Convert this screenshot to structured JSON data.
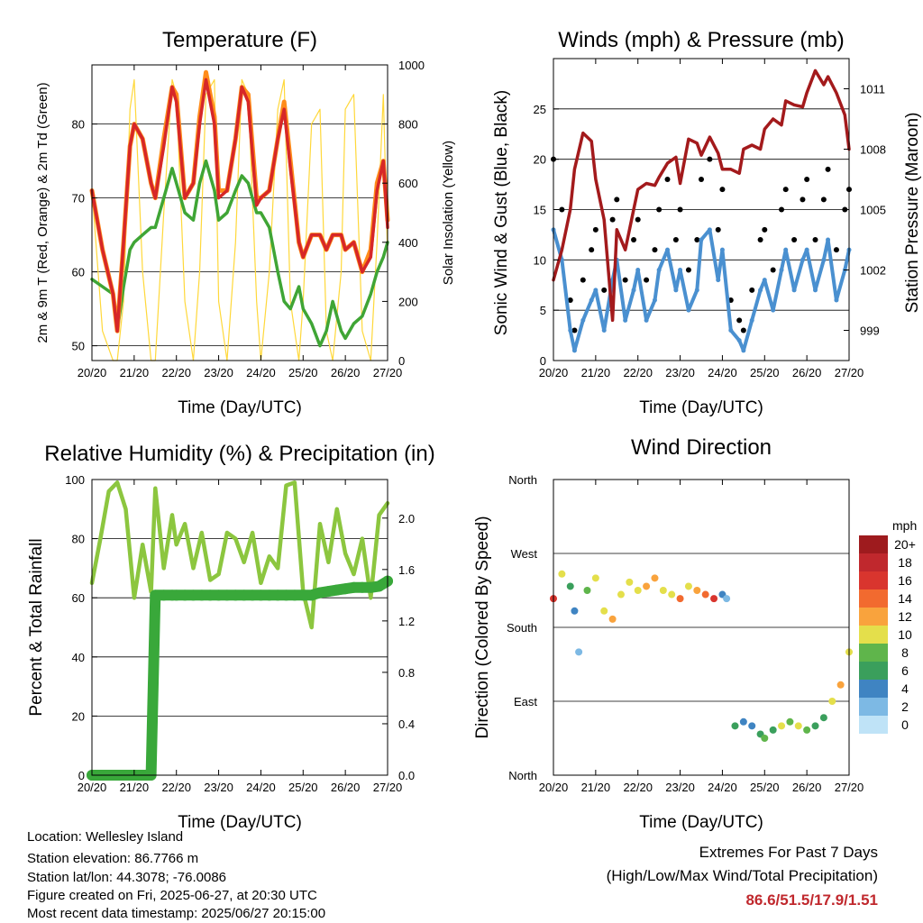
{
  "x_tick_labels": [
    "20/20",
    "21/20",
    "22/20",
    "23/20",
    "24/20",
    "25/20",
    "26/20",
    "27/20"
  ],
  "colors": {
    "temp_2m": "#d62728",
    "temp_9m": "#ff8c1a",
    "dewpoint": "#3fa535",
    "solar": "#ffd83a",
    "wind": "#4a90d0",
    "gust": "#000000",
    "pressure": "#a31a1c",
    "humidity": "#8cc63f",
    "precip": "#39a83a"
  },
  "info": {
    "location": "Location: Wellesley Island",
    "elevation": "Station elevation: 86.7766 m",
    "latlon": "Station lat/lon: 44.3078; -76.0086",
    "created": "Figure created on Fri, 2025-06-27, at 20:30 UTC",
    "recent": "Most recent data timestamp: 2025/06/27 20:15:00"
  },
  "extremes": {
    "title": "Extremes For Past 7 Days",
    "subtitle": "(High/Low/Max Wind/Total Precipitation)",
    "values": "86.6/51.5/17.9/1.51"
  },
  "chart_data": [
    {
      "type": "line",
      "title": "Temperature (F)",
      "xlabel": "Time (Day/UTC)",
      "ylabel": "2m & 9m T (Red, Orange) & 2m Td (Green)",
      "ylabel_right": "Solar Insolation (Yellow)",
      "ylim": [
        48,
        88
      ],
      "ylim_right": [
        0,
        1000
      ],
      "yticks": [
        50,
        60,
        70,
        80
      ],
      "yticks_right": [
        0,
        200,
        400,
        600,
        800,
        1000
      ],
      "x": [
        0,
        0.25,
        0.5,
        0.6,
        0.75,
        0.9,
        1.0,
        1.2,
        1.4,
        1.5,
        1.7,
        1.9,
        2.0,
        2.2,
        2.4,
        2.55,
        2.7,
        2.9,
        3.0,
        3.2,
        3.4,
        3.55,
        3.7,
        3.9,
        4.0,
        4.2,
        4.4,
        4.55,
        4.7,
        4.9,
        5.0,
        5.2,
        5.4,
        5.55,
        5.7,
        5.9,
        6.0,
        6.2,
        6.4,
        6.6,
        6.75,
        6.9,
        7.0
      ],
      "series": [
        {
          "name": "2m T",
          "values": [
            71,
            63,
            57,
            52,
            64,
            77,
            80,
            78,
            72,
            70,
            77,
            85,
            83,
            70,
            72,
            80,
            86,
            80,
            70,
            71,
            78,
            85,
            83,
            69,
            70,
            71,
            78,
            82,
            74,
            64,
            62,
            65,
            65,
            63,
            65,
            65,
            63,
            64,
            60,
            62,
            71,
            75,
            66
          ]
        },
        {
          "name": "9m T",
          "values": [
            71,
            63,
            57,
            52,
            64,
            77,
            80,
            78,
            72,
            70,
            78,
            85,
            84,
            70,
            72,
            81,
            87,
            81,
            71,
            71,
            78,
            85,
            84,
            70,
            70,
            71,
            78,
            83,
            75,
            64,
            62,
            65,
            65,
            63,
            65,
            65,
            63,
            64,
            60,
            63,
            72,
            75,
            67
          ]
        },
        {
          "name": "2m Td",
          "values": [
            59,
            58,
            57,
            52,
            58,
            63,
            64,
            65,
            66,
            66,
            70,
            74,
            72,
            68,
            67,
            72,
            75,
            71,
            67,
            68,
            71,
            73,
            72,
            68,
            68,
            66,
            60,
            56,
            55,
            58,
            55,
            53,
            50,
            52,
            56,
            52,
            51,
            53,
            54,
            57,
            60,
            62,
            64
          ]
        },
        {
          "name": "Solar",
          "values": [
            580,
            100,
            0,
            0,
            200,
            850,
            950,
            300,
            0,
            0,
            500,
            950,
            900,
            200,
            0,
            300,
            900,
            950,
            200,
            0,
            400,
            950,
            900,
            200,
            0,
            300,
            850,
            950,
            200,
            0,
            200,
            800,
            850,
            100,
            0,
            300,
            850,
            900,
            100,
            0,
            400,
            900,
            350
          ]
        }
      ]
    },
    {
      "type": "scatter",
      "title": "Winds (mph) & Pressure (mb)",
      "xlabel": "Time (Day/UTC)",
      "ylabel": "Sonic Wind & Gust (Blue, Black)",
      "ylabel_right": "Station Pressure (Maroon)",
      "ylim": [
        0,
        30
      ],
      "ylim_right": [
        997.5,
        1012.5
      ],
      "yticks": [
        0,
        5,
        10,
        15,
        20,
        25
      ],
      "yticks_right": [
        999,
        1002,
        1005,
        1008,
        1011
      ],
      "x": [
        0,
        0.2,
        0.4,
        0.5,
        0.7,
        0.9,
        1.0,
        1.2,
        1.4,
        1.5,
        1.7,
        1.9,
        2.0,
        2.2,
        2.4,
        2.5,
        2.7,
        2.9,
        3.0,
        3.2,
        3.4,
        3.5,
        3.7,
        3.9,
        4.0,
        4.2,
        4.4,
        4.5,
        4.7,
        4.9,
        5.0,
        5.2,
        5.4,
        5.5,
        5.7,
        5.9,
        6.0,
        6.2,
        6.4,
        6.5,
        6.7,
        6.9,
        7.0
      ],
      "series": [
        {
          "name": "Wind",
          "values": [
            13,
            10,
            3,
            1,
            4,
            6,
            7,
            3,
            8,
            10,
            4,
            7,
            9,
            4,
            6,
            9,
            11,
            7,
            9,
            5,
            7,
            12,
            13,
            8,
            11,
            3,
            2,
            1,
            4,
            7,
            8,
            5,
            9,
            11,
            7,
            10,
            11,
            7,
            10,
            12,
            6,
            9,
            11
          ]
        },
        {
          "name": "Gust",
          "values": [
            20,
            15,
            6,
            3,
            8,
            11,
            13,
            7,
            14,
            16,
            8,
            12,
            14,
            8,
            11,
            15,
            18,
            12,
            15,
            9,
            12,
            18,
            20,
            13,
            17,
            6,
            4,
            3,
            7,
            12,
            13,
            9,
            15,
            17,
            12,
            16,
            18,
            12,
            16,
            19,
            11,
            15,
            17
          ]
        },
        {
          "name": "Pressure",
          "values": [
            1001.5,
            1003,
            1005,
            1007,
            1008.8,
            1008.4,
            1006.5,
            1004.5,
            999.5,
            1004,
            1003,
            1005,
            1006,
            1006.3,
            1006.2,
            1006.6,
            1007.3,
            1007.6,
            1006.3,
            1008.5,
            1008.3,
            1007.7,
            1008.6,
            1007.8,
            1007,
            1007,
            1006.8,
            1008,
            1008.2,
            1008,
            1009,
            1009.5,
            1009.2,
            1010.4,
            1010.2,
            1010.1,
            1010.8,
            1011.9,
            1011.2,
            1011.6,
            1010.8,
            1009.7,
            1008
          ]
        }
      ]
    },
    {
      "type": "line",
      "title": "Relative Humidity (%) & Precipitation (in)",
      "xlabel": "Time (Day/UTC)",
      "ylabel": "Percent & Total Rainfall",
      "ylim": [
        0,
        100
      ],
      "ylim_right": [
        0,
        2.3
      ],
      "yticks": [
        0,
        20,
        40,
        60,
        80,
        100
      ],
      "yticks_right": [
        0.0,
        0.4,
        0.8,
        1.2,
        1.6,
        2.0
      ],
      "x": [
        0,
        0.2,
        0.4,
        0.6,
        0.8,
        1.0,
        1.2,
        1.4,
        1.5,
        1.7,
        1.9,
        2.0,
        2.2,
        2.4,
        2.6,
        2.8,
        3.0,
        3.2,
        3.4,
        3.6,
        3.8,
        4.0,
        4.2,
        4.4,
        4.6,
        4.8,
        5.0,
        5.2,
        5.4,
        5.6,
        5.8,
        6.0,
        6.2,
        6.4,
        6.6,
        6.8,
        7.0
      ],
      "series": [
        {
          "name": "RH",
          "values": [
            65,
            80,
            96,
            99,
            90,
            60,
            78,
            62,
            97,
            70,
            88,
            78,
            85,
            70,
            82,
            66,
            68,
            82,
            80,
            72,
            82,
            65,
            74,
            70,
            98,
            99,
            62,
            50,
            85,
            72,
            90,
            75,
            68,
            80,
            60,
            88,
            92
          ]
        },
        {
          "name": "Precip",
          "values": [
            0,
            0,
            0,
            0,
            0,
            0,
            0,
            0,
            1.4,
            1.4,
            1.4,
            1.4,
            1.4,
            1.4,
            1.4,
            1.4,
            1.4,
            1.4,
            1.4,
            1.4,
            1.4,
            1.4,
            1.4,
            1.4,
            1.4,
            1.4,
            1.4,
            1.4,
            1.42,
            1.43,
            1.44,
            1.45,
            1.46,
            1.46,
            1.46,
            1.47,
            1.51
          ]
        }
      ]
    },
    {
      "type": "scatter",
      "title": "Wind Direction",
      "xlabel": "Time (Day/UTC)",
      "ylabel": "Direction (Colored By Speed)",
      "yticks": [
        "North",
        "East",
        "South",
        "West",
        "North"
      ],
      "legend_title": "mph",
      "legend_labels": [
        "20+",
        "18",
        "16",
        "14",
        "12",
        "10",
        "8",
        "6",
        "4",
        "2",
        "0"
      ],
      "legend_colors": [
        "#9e1b1e",
        "#c0282d",
        "#d9352e",
        "#f26a2f",
        "#f9a33d",
        "#e4df4b",
        "#5fb54b",
        "#3a9f5c",
        "#3f84c2",
        "#7db9e4",
        "#bfe3f7"
      ],
      "x": [
        0,
        0.2,
        0.4,
        0.5,
        0.6,
        0.8,
        1.0,
        1.2,
        1.4,
        1.6,
        1.8,
        2.0,
        2.2,
        2.4,
        2.6,
        2.8,
        3.0,
        3.2,
        3.4,
        3.6,
        3.8,
        4.0,
        4.1,
        4.3,
        4.5,
        4.7,
        4.9,
        5.0,
        5.2,
        5.4,
        5.6,
        5.8,
        6.0,
        6.2,
        6.4,
        6.6,
        6.8,
        7.0
      ],
      "direction_deg": [
        215,
        245,
        230,
        200,
        150,
        225,
        240,
        200,
        190,
        220,
        235,
        225,
        230,
        240,
        225,
        220,
        215,
        230,
        225,
        220,
        215,
        220,
        215,
        60,
        65,
        60,
        50,
        45,
        55,
        60,
        65,
        60,
        55,
        60,
        70,
        90,
        110,
        150
      ],
      "speed_mph": [
        16,
        10,
        6,
        4,
        2,
        8,
        9,
        10,
        12,
        9,
        10,
        9,
        11,
        12,
        9,
        10,
        13,
        10,
        11,
        14,
        15,
        4,
        2,
        5,
        4,
        3,
        5,
        7,
        6,
        9,
        8,
        10,
        7,
        5,
        6,
        10,
        12,
        10
      ]
    }
  ]
}
